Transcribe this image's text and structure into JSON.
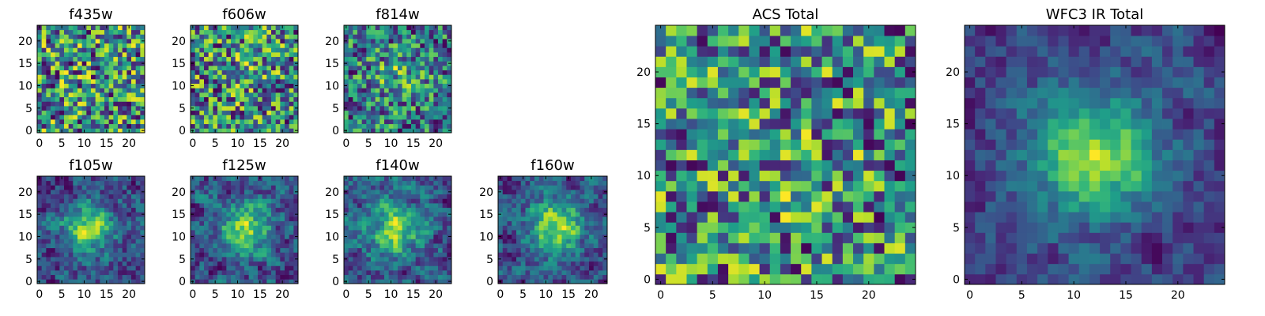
{
  "chart_data": [
    {
      "type": "heatmap",
      "title": "f435w",
      "grid_size": [
        24,
        24
      ],
      "colormap": "viridis",
      "xlim": [
        0,
        24
      ],
      "ylim": [
        0,
        24
      ],
      "xticks": [
        0,
        5,
        10,
        15,
        20
      ],
      "yticks": [
        0,
        5,
        10,
        15,
        20
      ],
      "structure": "noise",
      "center": [
        12,
        12
      ],
      "peak_strength": 0.0
    },
    {
      "type": "heatmap",
      "title": "f606w",
      "grid_size": [
        24,
        24
      ],
      "colormap": "viridis",
      "xlim": [
        0,
        24
      ],
      "ylim": [
        0,
        24
      ],
      "xticks": [
        0,
        5,
        10,
        15,
        20
      ],
      "yticks": [
        0,
        5,
        10,
        15,
        20
      ],
      "structure": "noise",
      "center": [
        12,
        12
      ],
      "peak_strength": 0.1
    },
    {
      "type": "heatmap",
      "title": "f814w",
      "grid_size": [
        24,
        24
      ],
      "colormap": "viridis",
      "xlim": [
        0,
        24
      ],
      "ylim": [
        0,
        24
      ],
      "xticks": [
        0,
        5,
        10,
        15,
        20
      ],
      "yticks": [
        0,
        5,
        10,
        15,
        20
      ],
      "structure": "faint source",
      "center": [
        12,
        12
      ],
      "peak_strength": 0.25
    },
    {
      "type": "heatmap",
      "title": "f105w",
      "grid_size": [
        24,
        24
      ],
      "colormap": "viridis",
      "xlim": [
        0,
        24
      ],
      "ylim": [
        0,
        24
      ],
      "xticks": [
        0,
        5,
        10,
        15,
        20
      ],
      "yticks": [
        0,
        5,
        10,
        15,
        20
      ],
      "structure": "central source",
      "center": [
        11,
        12
      ],
      "peak_strength": 0.55
    },
    {
      "type": "heatmap",
      "title": "f125w",
      "grid_size": [
        24,
        24
      ],
      "colormap": "viridis",
      "xlim": [
        0,
        24
      ],
      "ylim": [
        0,
        24
      ],
      "xticks": [
        0,
        5,
        10,
        15,
        20
      ],
      "yticks": [
        0,
        5,
        10,
        15,
        20
      ],
      "structure": "central source",
      "center": [
        12,
        12
      ],
      "peak_strength": 0.55
    },
    {
      "type": "heatmap",
      "title": "f140w",
      "grid_size": [
        24,
        24
      ],
      "colormap": "viridis",
      "xlim": [
        0,
        24
      ],
      "ylim": [
        0,
        24
      ],
      "xticks": [
        0,
        5,
        10,
        15,
        20
      ],
      "yticks": [
        0,
        5,
        10,
        15,
        20
      ],
      "structure": "central source",
      "center": [
        11,
        12
      ],
      "peak_strength": 0.55
    },
    {
      "type": "heatmap",
      "title": "f160w",
      "grid_size": [
        24,
        24
      ],
      "colormap": "viridis",
      "xlim": [
        0,
        24
      ],
      "ylim": [
        0,
        24
      ],
      "xticks": [
        0,
        5,
        10,
        15,
        20
      ],
      "yticks": [
        0,
        5,
        10,
        15,
        20
      ],
      "structure": "central source",
      "center": [
        12,
        12
      ],
      "peak_strength": 0.65
    },
    {
      "type": "heatmap",
      "title": "ACS Total",
      "grid_size": [
        25,
        25
      ],
      "colormap": "viridis",
      "xlim": [
        0,
        24
      ],
      "ylim": [
        0,
        24
      ],
      "xticks": [
        0,
        5,
        10,
        15,
        20
      ],
      "yticks": [
        0,
        5,
        10,
        15,
        20
      ],
      "structure": "noise",
      "center": [
        12,
        12
      ],
      "peak_strength": 0.1
    },
    {
      "type": "heatmap",
      "title": "WFC3 IR Total",
      "grid_size": [
        25,
        25
      ],
      "colormap": "viridis",
      "xlim": [
        0,
        24
      ],
      "ylim": [
        0,
        24
      ],
      "xticks": [
        0,
        5,
        10,
        15,
        20
      ],
      "yticks": [
        0,
        5,
        10,
        15,
        20
      ],
      "structure": "central source",
      "center": [
        12,
        12
      ],
      "peak_strength": 0.8
    }
  ]
}
